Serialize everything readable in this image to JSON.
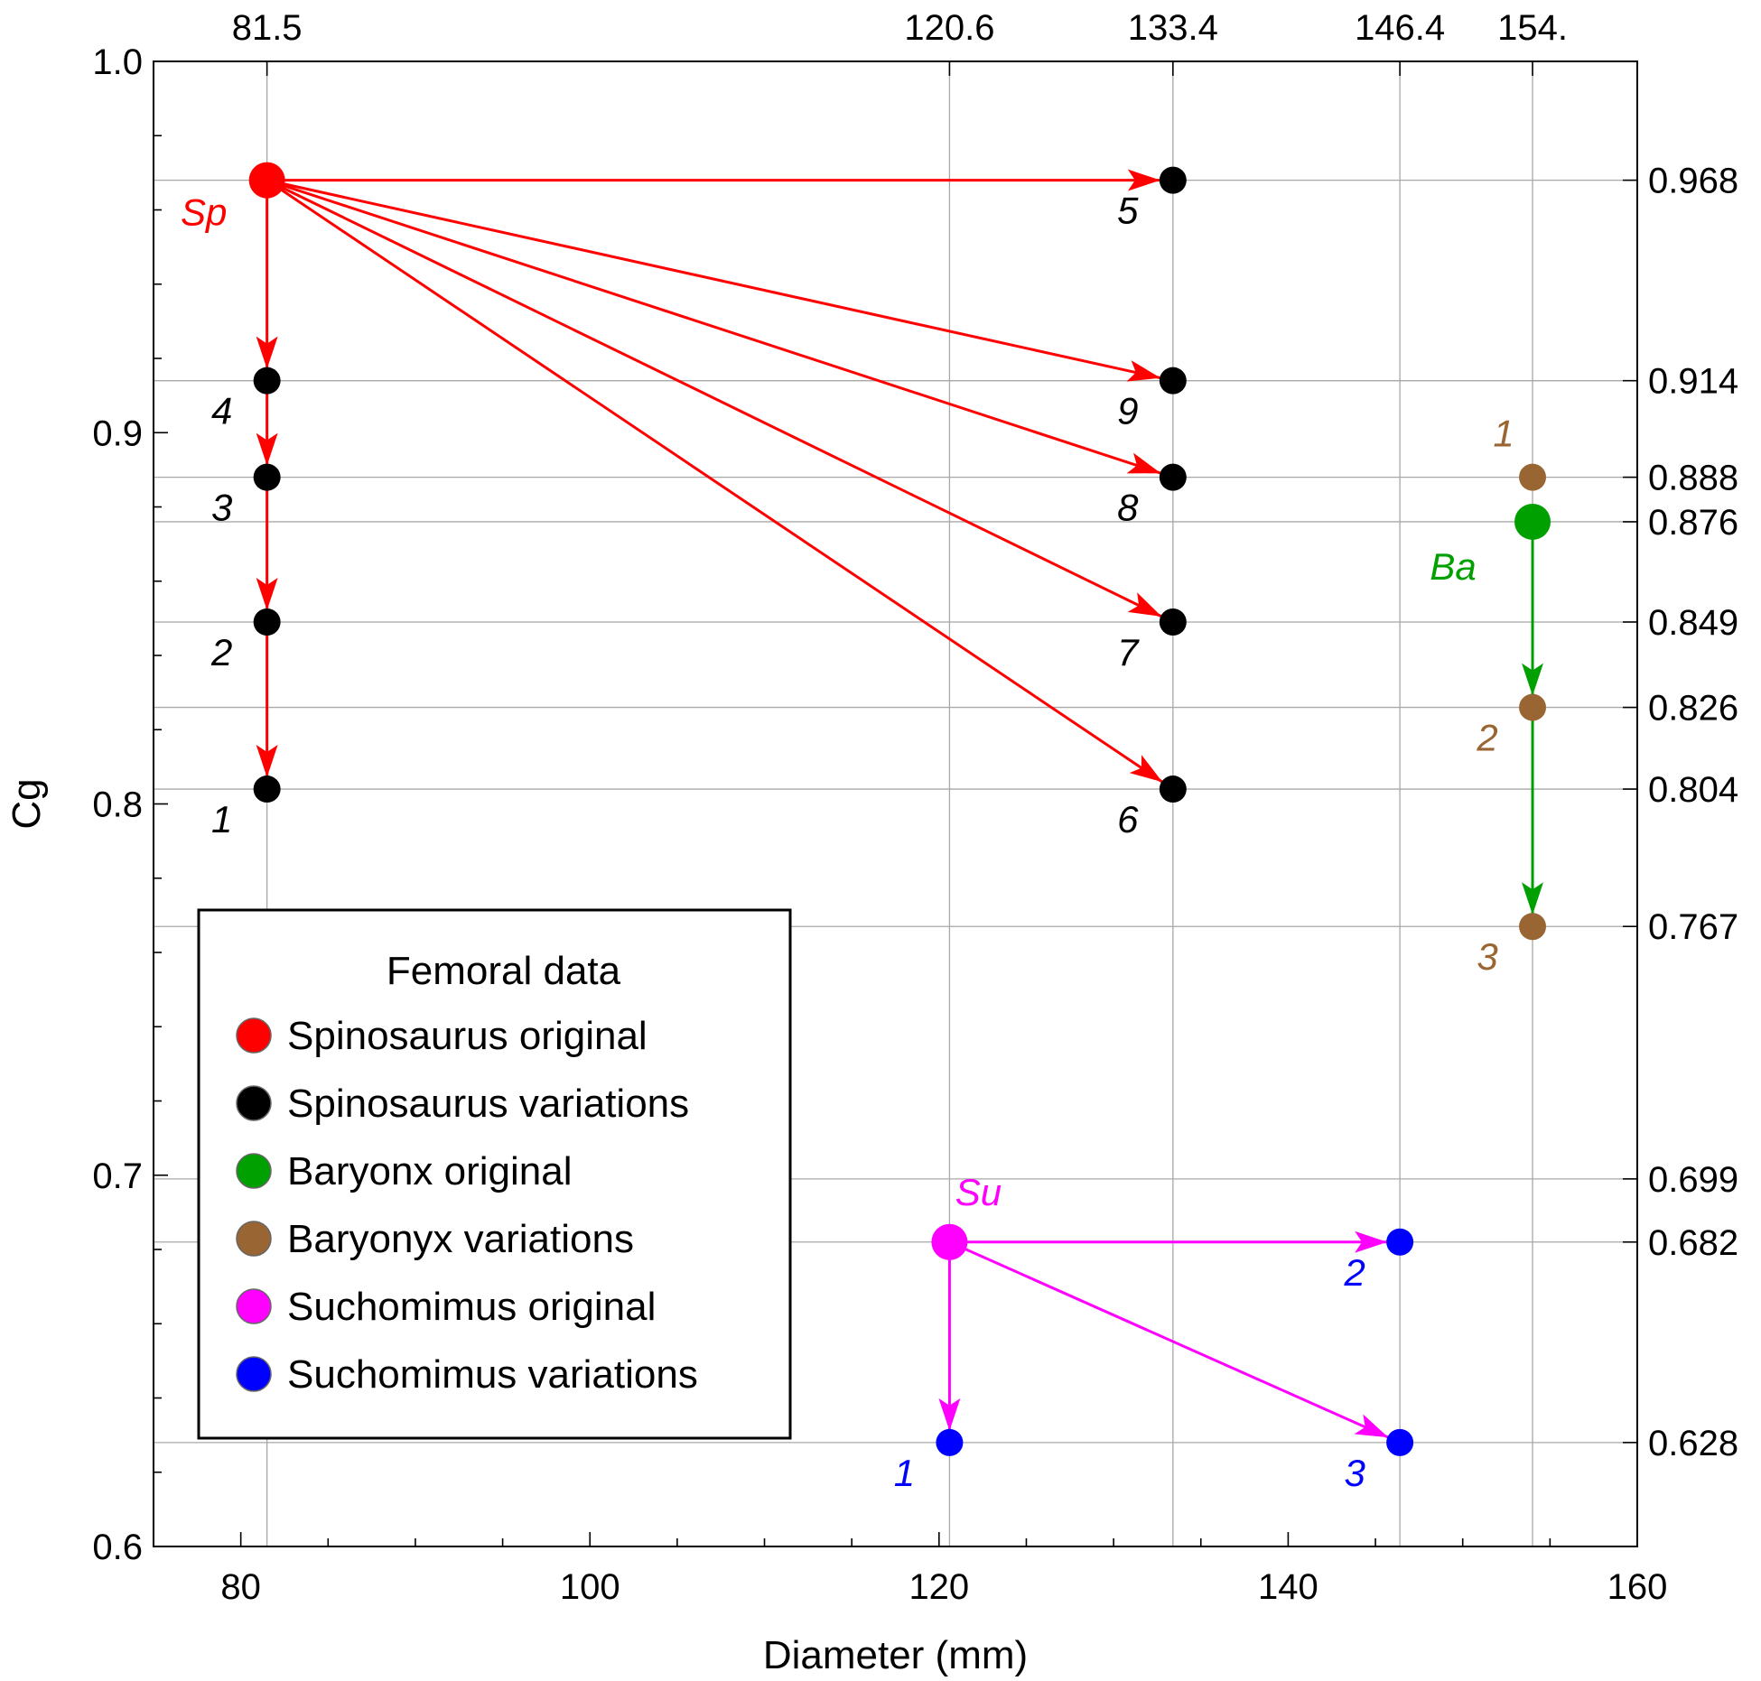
{
  "chart_data": {
    "type": "scatter",
    "xlabel": "Diameter (mm)",
    "ylabel": "Cg",
    "xlim": [
      75,
      160
    ],
    "ylim": [
      0.6,
      1.0
    ],
    "x_ticks": [
      80,
      100,
      120,
      140,
      160
    ],
    "y_ticks": [
      0.6,
      0.7,
      0.8,
      0.9,
      1.0
    ],
    "y_tick_labels": [
      "0.6",
      "0.7",
      "0.8",
      "0.9",
      "1.0"
    ],
    "top_ticks": [
      {
        "x": 81.5,
        "label": "81.5"
      },
      {
        "x": 120.6,
        "label": "120.6"
      },
      {
        "x": 133.4,
        "label": "133.4"
      },
      {
        "x": 146.4,
        "label": "146.4"
      },
      {
        "x": 154.0,
        "label": "154."
      }
    ],
    "right_ticks": [
      {
        "y": 0.968,
        "label": "0.968"
      },
      {
        "y": 0.914,
        "label": "0.914"
      },
      {
        "y": 0.888,
        "label": "0.888"
      },
      {
        "y": 0.876,
        "label": "0.876"
      },
      {
        "y": 0.849,
        "label": "0.849"
      },
      {
        "y": 0.826,
        "label": "0.826"
      },
      {
        "y": 0.804,
        "label": "0.804"
      },
      {
        "y": 0.767,
        "label": "0.767"
      },
      {
        "y": 0.699,
        "label": "0.699"
      },
      {
        "y": 0.682,
        "label": "0.682"
      },
      {
        "y": 0.628,
        "label": "0.628"
      }
    ],
    "grid": "at marked values",
    "legend": {
      "title": "Femoral data",
      "placement": "bottom-left",
      "entries": [
        {
          "name": "Spinosaurus original",
          "color": "#ff0000"
        },
        {
          "name": "Spinosaurus variations",
          "color": "#000000"
        },
        {
          "name": "Baryonx original",
          "color": "#00a000"
        },
        {
          "name": "Baryonyx variations",
          "color": "#996633"
        },
        {
          "name": "Suchomimus original",
          "color": "#ff00ff"
        },
        {
          "name": "Suchomimus variations",
          "color": "#0000ff"
        }
      ]
    },
    "groups": [
      {
        "origin": {
          "x": 81.5,
          "y": 0.968,
          "label": "Sp",
          "color": "#ff0000"
        },
        "arrow_color": "#ff0000",
        "arrow_mode": "direct",
        "point_color": "#000000",
        "label_color": "#000000",
        "points": [
          {
            "x": 81.5,
            "y": 0.914,
            "label": "4"
          },
          {
            "x": 81.5,
            "y": 0.888,
            "label": "3"
          },
          {
            "x": 81.5,
            "y": 0.849,
            "label": "2"
          },
          {
            "x": 81.5,
            "y": 0.804,
            "label": "1"
          },
          {
            "x": 133.4,
            "y": 0.968,
            "label": "5"
          },
          {
            "x": 133.4,
            "y": 0.914,
            "label": "9"
          },
          {
            "x": 133.4,
            "y": 0.888,
            "label": "8"
          },
          {
            "x": 133.4,
            "y": 0.849,
            "label": "7"
          },
          {
            "x": 133.4,
            "y": 0.804,
            "label": "6"
          }
        ]
      },
      {
        "origin": {
          "x": 154.0,
          "y": 0.876,
          "label": "Ba",
          "color": "#00a000"
        },
        "arrow_color": "#00a000",
        "arrow_mode": "direct",
        "point_color": "#996633",
        "label_color": "#996633",
        "points": [
          {
            "x": 154.0,
            "y": 0.888,
            "label": "1",
            "no_arrow": true
          },
          {
            "x": 154.0,
            "y": 0.826,
            "label": "2"
          },
          {
            "x": 154.0,
            "y": 0.767,
            "label": "3"
          }
        ]
      },
      {
        "origin": {
          "x": 120.6,
          "y": 0.682,
          "label": "Su",
          "color": "#ff00ff"
        },
        "arrow_color": "#ff00ff",
        "arrow_mode": "direct",
        "point_color": "#0000ff",
        "label_color": "#0000ff",
        "points": [
          {
            "x": 120.6,
            "y": 0.628,
            "label": "1"
          },
          {
            "x": 146.4,
            "y": 0.682,
            "label": "2"
          },
          {
            "x": 146.4,
            "y": 0.628,
            "label": "3"
          }
        ]
      }
    ]
  }
}
